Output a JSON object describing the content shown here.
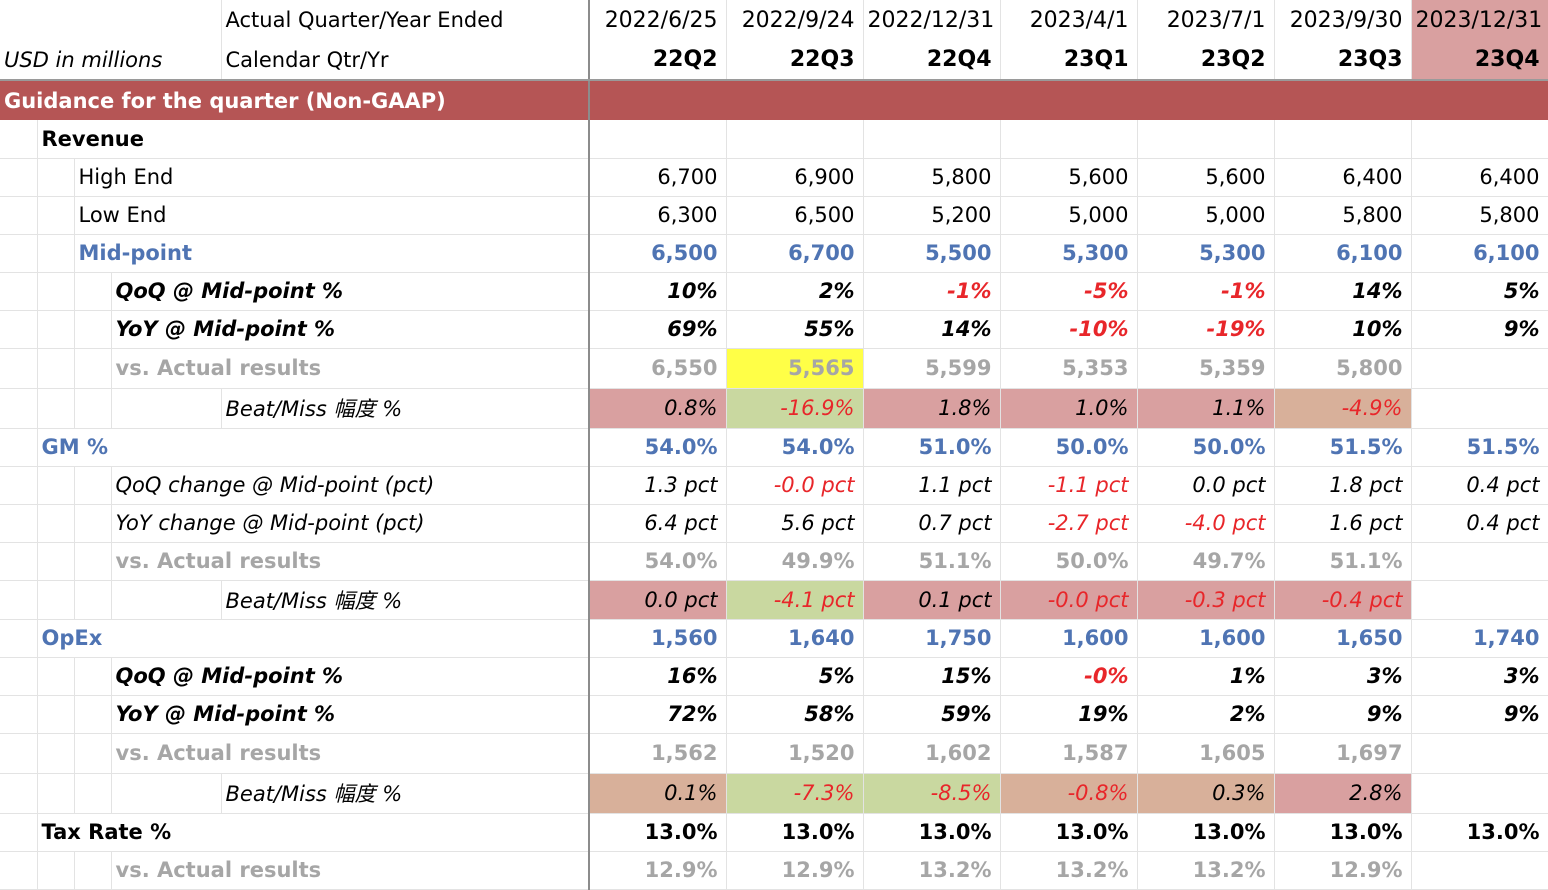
{
  "header": {
    "row1_label": "Actual Quarter/Year Ended",
    "row2_unit": "USD in millions",
    "row2_label": "Calendar Qtr/Yr",
    "dates": [
      "2022/6/25",
      "2022/9/24",
      "2022/12/31",
      "2023/4/1",
      "2023/7/1",
      "2023/9/30",
      "2023/12/31"
    ],
    "quarters": [
      "22Q2",
      "22Q3",
      "22Q4",
      "23Q1",
      "23Q2",
      "23Q3",
      "23Q4"
    ]
  },
  "section_title": "Guidance for the quarter (Non-GAAP)",
  "rows": {
    "revenue": {
      "label": "Revenue"
    },
    "high_end": {
      "label": "High End",
      "values": [
        "6,700",
        "6,900",
        "5,800",
        "5,600",
        "5,600",
        "6,400",
        "6,400"
      ]
    },
    "low_end": {
      "label": "Low End",
      "values": [
        "6,300",
        "6,500",
        "5,200",
        "5,000",
        "5,000",
        "5,800",
        "5,800"
      ]
    },
    "midpoint": {
      "label": "Mid-point",
      "values": [
        "6,500",
        "6,700",
        "5,500",
        "5,300",
        "5,300",
        "6,100",
        "6,100"
      ]
    },
    "rev_qoq": {
      "label": "QoQ @ Mid-point %",
      "values": [
        "10%",
        "2%",
        "-1%",
        "-5%",
        "-1%",
        "14%",
        "5%"
      ]
    },
    "rev_yoy": {
      "label": "YoY @ Mid-point %",
      "values": [
        "69%",
        "55%",
        "14%",
        "-10%",
        "-19%",
        "10%",
        "9%"
      ]
    },
    "rev_actual": {
      "label": "vs. Actual results",
      "values": [
        "6,550",
        "5,565",
        "5,599",
        "5,353",
        "5,359",
        "5,800",
        ""
      ]
    },
    "rev_beat": {
      "label": "Beat/Miss 幅度 %",
      "values": [
        "0.8%",
        "-16.9%",
        "1.8%",
        "1.0%",
        "1.1%",
        "-4.9%",
        ""
      ]
    },
    "gm": {
      "label": "GM %",
      "values": [
        "54.0%",
        "54.0%",
        "51.0%",
        "50.0%",
        "50.0%",
        "51.5%",
        "51.5%"
      ]
    },
    "gm_qoq": {
      "label": "QoQ change @ Mid-point (pct)",
      "values": [
        "1.3 pct",
        "-0.0 pct",
        "1.1 pct",
        "-1.1 pct",
        "0.0 pct",
        "1.8 pct",
        "0.4 pct"
      ]
    },
    "gm_yoy": {
      "label": "YoY change @ Mid-point (pct)",
      "values": [
        "6.4 pct",
        "5.6 pct",
        "0.7 pct",
        "-2.7 pct",
        "-4.0 pct",
        "1.6 pct",
        "0.4 pct"
      ]
    },
    "gm_actual": {
      "label": "vs. Actual results",
      "values": [
        "54.0%",
        "49.9%",
        "51.1%",
        "50.0%",
        "49.7%",
        "51.1%",
        ""
      ]
    },
    "gm_beat": {
      "label": "Beat/Miss 幅度 %",
      "values": [
        "0.0 pct",
        "-4.1 pct",
        "0.1 pct",
        "-0.0 pct",
        "-0.3 pct",
        "-0.4 pct",
        ""
      ]
    },
    "opex": {
      "label": "OpEx",
      "values": [
        "1,560",
        "1,640",
        "1,750",
        "1,600",
        "1,600",
        "1,650",
        "1,740"
      ]
    },
    "opex_qoq": {
      "label": "QoQ @ Mid-point %",
      "values": [
        "16%",
        "5%",
        "15%",
        "-0%",
        "1%",
        "3%",
        "3%"
      ]
    },
    "opex_yoy": {
      "label": "YoY @ Mid-point %",
      "values": [
        "72%",
        "58%",
        "59%",
        "19%",
        "2%",
        "9%",
        "9%"
      ]
    },
    "opex_actual": {
      "label": "vs. Actual results",
      "values": [
        "1,562",
        "1,520",
        "1,602",
        "1,587",
        "1,605",
        "1,697",
        ""
      ]
    },
    "opex_beat": {
      "label": "Beat/Miss 幅度 %",
      "values": [
        "0.1%",
        "-7.3%",
        "-8.5%",
        "-0.8%",
        "0.3%",
        "2.8%",
        ""
      ]
    },
    "tax": {
      "label": "Tax Rate %",
      "values": [
        "13.0%",
        "13.0%",
        "13.0%",
        "13.0%",
        "13.0%",
        "13.0%",
        "13.0%"
      ]
    },
    "tax_actual": {
      "label": "vs. Actual results",
      "values": [
        "12.9%",
        "12.9%",
        "13.2%",
        "13.2%",
        "13.2%",
        "12.9%",
        ""
      ]
    }
  },
  "colors": {
    "section_bg": "#b55555",
    "blue_text": "#4f74b3",
    "grey_text": "#a6a6a6",
    "negative_red": "#e8262a",
    "highlight_red": "#d9a0a0",
    "highlight_green": "#c9d8a0",
    "highlight_yellow": "#ffff47"
  }
}
